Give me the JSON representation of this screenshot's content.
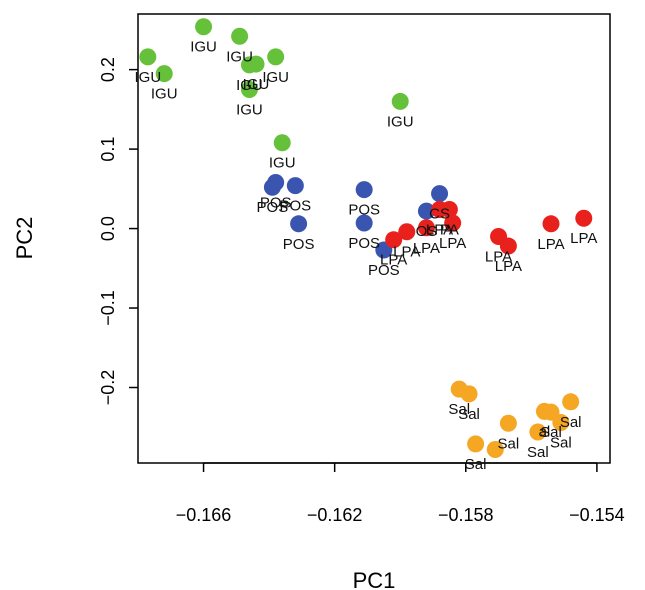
{
  "chart_data": {
    "type": "scatter",
    "title": "",
    "xlabel": "PC1",
    "ylabel": "PC2",
    "xlim": [
      -0.168,
      -0.1536
    ],
    "ylim": [
      -0.295,
      0.27
    ],
    "xticks": [
      -0.166,
      -0.162,
      -0.158,
      -0.154
    ],
    "xtick_labels": [
      "−0.166",
      "−0.162",
      "−0.158",
      "−0.154"
    ],
    "yticks": [
      -0.2,
      -0.1,
      0.0,
      0.1,
      0.2
    ],
    "ytick_labels": [
      "−0.2",
      "−0.1",
      "0.0",
      "0.1",
      "0.2"
    ],
    "grid": false,
    "legend": "none",
    "series": [
      {
        "name": "IGU",
        "color": "#66c13a",
        "points": [
          {
            "x": -0.1677,
            "y": 0.216
          },
          {
            "x": -0.1672,
            "y": 0.195
          },
          {
            "x": -0.166,
            "y": 0.254
          },
          {
            "x": -0.1649,
            "y": 0.242
          },
          {
            "x": -0.1646,
            "y": 0.206
          },
          {
            "x": -0.1644,
            "y": 0.207
          },
          {
            "x": -0.1646,
            "y": 0.175
          },
          {
            "x": -0.1638,
            "y": 0.216
          },
          {
            "x": -0.1636,
            "y": 0.108
          },
          {
            "x": -0.16,
            "y": 0.16
          }
        ],
        "labels": [
          "IGU",
          "IGU",
          "IGU",
          "IGU",
          "IGU",
          "IGU",
          "IGU",
          "IGU",
          "IGU",
          "IGU"
        ]
      },
      {
        "name": "POS",
        "color": "#3a55b0",
        "points": [
          {
            "x": -0.1639,
            "y": 0.052
          },
          {
            "x": -0.1638,
            "y": 0.058
          },
          {
            "x": -0.1632,
            "y": 0.054
          },
          {
            "x": -0.1631,
            "y": 0.006
          },
          {
            "x": -0.1611,
            "y": 0.049
          },
          {
            "x": -0.1611,
            "y": 0.007
          },
          {
            "x": -0.1605,
            "y": -0.027
          },
          {
            "x": -0.1592,
            "y": 0.022
          },
          {
            "x": -0.1588,
            "y": 0.044
          }
        ],
        "labels": [
          "POS",
          "POS",
          "POS",
          "POS",
          "POS",
          "POS",
          "POS",
          "OS",
          "CS"
        ]
      },
      {
        "name": "LPA",
        "color": "#e8211c",
        "points": [
          {
            "x": -0.1602,
            "y": -0.014
          },
          {
            "x": -0.1598,
            "y": -0.004
          },
          {
            "x": -0.1592,
            "y": 0.001
          },
          {
            "x": -0.1588,
            "y": 0.024
          },
          {
            "x": -0.1585,
            "y": 0.024
          },
          {
            "x": -0.1584,
            "y": 0.007
          },
          {
            "x": -0.157,
            "y": -0.01
          },
          {
            "x": -0.1567,
            "y": -0.022
          },
          {
            "x": -0.1554,
            "y": 0.006
          },
          {
            "x": -0.1544,
            "y": 0.013
          }
        ],
        "labels": [
          "LPA",
          "LPA",
          "LPA",
          "LPA",
          "PA",
          "LPA",
          "LPA",
          "LPA",
          "LPA",
          "LPA"
        ]
      },
      {
        "name": "Sal",
        "color": "#f5a623",
        "points": [
          {
            "x": -0.1582,
            "y": -0.202
          },
          {
            "x": -0.1579,
            "y": -0.208
          },
          {
            "x": -0.1577,
            "y": -0.271
          },
          {
            "x": -0.1571,
            "y": -0.278
          },
          {
            "x": -0.1567,
            "y": -0.245
          },
          {
            "x": -0.1558,
            "y": -0.256
          },
          {
            "x": -0.1556,
            "y": -0.23
          },
          {
            "x": -0.1554,
            "y": -0.231
          },
          {
            "x": -0.1551,
            "y": -0.244
          },
          {
            "x": -0.1548,
            "y": -0.218
          }
        ],
        "labels": [
          "Sal",
          "Sal",
          "Sal",
          "",
          "Sal",
          "Sal",
          "al",
          "Sal",
          "Sal",
          "Sal"
        ]
      }
    ]
  }
}
